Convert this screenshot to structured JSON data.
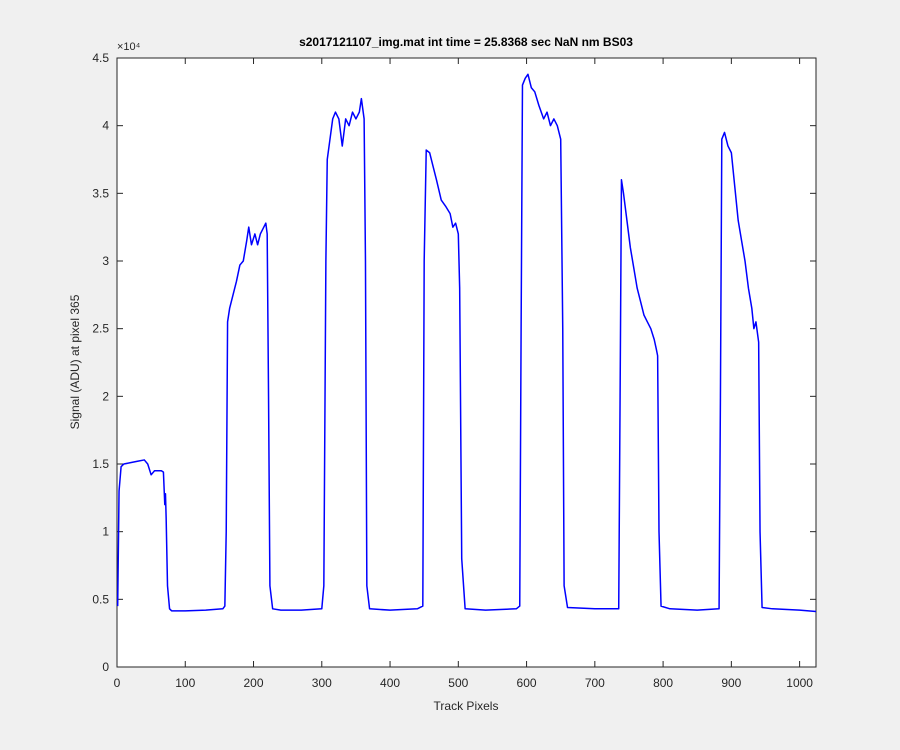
{
  "chart_data": {
    "type": "line",
    "title": "s2017121107_img.mat int time = 25.8368 sec  NaN nm BS03",
    "x_label": "Track Pixels",
    "y_label": "Signal (ADU) at pixel 365",
    "y_multiplier": "×10⁴",
    "xlim": [
      0,
      1024
    ],
    "ylim": [
      0,
      4.5
    ],
    "xticks": [
      0,
      100,
      200,
      300,
      400,
      500,
      600,
      700,
      800,
      900,
      1000
    ],
    "yticks": [
      0,
      0.5,
      1,
      1.5,
      2,
      2.5,
      3,
      3.5,
      4,
      4.5
    ],
    "grid": false,
    "x": [
      1,
      3,
      6,
      10,
      20,
      30,
      40,
      45,
      50,
      55,
      60,
      65,
      68,
      70,
      71,
      72,
      74,
      77,
      80,
      100,
      130,
      155,
      158,
      160,
      162,
      165,
      170,
      175,
      180,
      185,
      190,
      193,
      197,
      202,
      206,
      210,
      215,
      218,
      220,
      222,
      224,
      228,
      240,
      270,
      300,
      303,
      306,
      308,
      312,
      316,
      320,
      325,
      330,
      335,
      340,
      345,
      350,
      355,
      358,
      362,
      364,
      366,
      370,
      400,
      440,
      448,
      450,
      453,
      458,
      463,
      468,
      475,
      482,
      488,
      492,
      496,
      500,
      502,
      505,
      510,
      540,
      585,
      590,
      592,
      594,
      598,
      602,
      607,
      612,
      618,
      625,
      630,
      635,
      640,
      645,
      650,
      653,
      655,
      660,
      700,
      735,
      737,
      739,
      742,
      747,
      752,
      757,
      762,
      767,
      772,
      777,
      782,
      787,
      790,
      792,
      794,
      797,
      810,
      850,
      882,
      884,
      886,
      890,
      895,
      900,
      905,
      910,
      915,
      920,
      925,
      930,
      933,
      936,
      940,
      942,
      945,
      960,
      1000,
      1024
    ],
    "series": [
      {
        "color": "#0000ff",
        "values": [
          0.45,
          1.3,
          1.48,
          1.5,
          1.51,
          1.52,
          1.53,
          1.5,
          1.42,
          1.45,
          1.45,
          1.45,
          1.44,
          1.2,
          1.28,
          1.1,
          0.6,
          0.43,
          0.415,
          0.415,
          0.42,
          0.43,
          0.45,
          1.0,
          2.55,
          2.65,
          2.75,
          2.85,
          2.97,
          3.0,
          3.15,
          3.25,
          3.12,
          3.2,
          3.12,
          3.2,
          3.25,
          3.28,
          3.2,
          2.0,
          0.6,
          0.43,
          0.42,
          0.42,
          0.43,
          0.6,
          3.0,
          3.75,
          3.9,
          4.05,
          4.1,
          4.05,
          3.85,
          4.05,
          4.0,
          4.1,
          4.05,
          4.1,
          4.2,
          4.05,
          3.0,
          0.6,
          0.43,
          0.42,
          0.43,
          0.45,
          3.0,
          3.82,
          3.8,
          3.7,
          3.6,
          3.45,
          3.4,
          3.35,
          3.25,
          3.28,
          3.2,
          2.8,
          0.8,
          0.43,
          0.42,
          0.43,
          0.45,
          2.5,
          4.3,
          4.35,
          4.38,
          4.28,
          4.25,
          4.15,
          4.05,
          4.1,
          4.0,
          4.05,
          4.0,
          3.9,
          2.5,
          0.6,
          0.44,
          0.43,
          0.43,
          2.0,
          3.6,
          3.5,
          3.3,
          3.1,
          2.95,
          2.8,
          2.7,
          2.6,
          2.55,
          2.5,
          2.42,
          2.35,
          2.3,
          1.0,
          0.45,
          0.43,
          0.42,
          0.43,
          2.0,
          3.9,
          3.95,
          3.85,
          3.8,
          3.55,
          3.3,
          3.15,
          3.0,
          2.8,
          2.65,
          2.5,
          2.55,
          2.4,
          1.0,
          0.44,
          0.43,
          0.42,
          0.41
        ]
      }
    ]
  }
}
